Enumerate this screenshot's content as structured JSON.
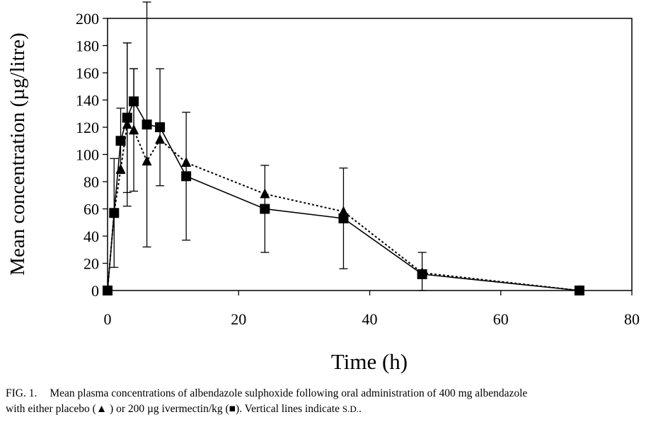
{
  "chart_data": {
    "type": "line",
    "title": "",
    "xlabel": "Time (h)",
    "ylabel": "Mean concentration (µg/litre)",
    "xlim": [
      0,
      80
    ],
    "ylim": [
      0,
      200
    ],
    "x_ticks": [
      0,
      20,
      40,
      60,
      80
    ],
    "y_ticks": [
      0,
      20,
      40,
      60,
      80,
      100,
      120,
      140,
      160,
      180,
      200
    ],
    "grid": false,
    "legend": "none",
    "series": [
      {
        "marker": "triangle",
        "line_style": "dotted",
        "color": "#000000",
        "x": [
          0,
          1,
          2,
          3,
          4,
          6,
          8,
          12,
          24,
          36,
          48,
          72
        ],
        "y": [
          0,
          57,
          89,
          122,
          118,
          95,
          111,
          94,
          71,
          58,
          13,
          0
        ],
        "sd": [
          0,
          0,
          0,
          60,
          45,
          0,
          0,
          0,
          0,
          0,
          0,
          0
        ]
      },
      {
        "marker": "square",
        "line_style": "solid",
        "color": "#000000",
        "x": [
          0,
          1,
          2,
          3,
          4,
          6,
          8,
          12,
          24,
          36,
          48,
          72
        ],
        "y": [
          0,
          57,
          110,
          127,
          139,
          122,
          120,
          84,
          60,
          53,
          12,
          0
        ],
        "sd": [
          0,
          40,
          24,
          55,
          24,
          90,
          43,
          47,
          32,
          37,
          16,
          0
        ]
      }
    ]
  },
  "caption": {
    "label": "FIG. 1.",
    "line1": "Mean plasma concentrations of albendazole sulphoxide following oral administration of 400 mg albendazole",
    "line2_a": "with either placebo (",
    "triangle_symbol": "▲",
    "line2_b": " ) or 200 µg ivermectin/kg (",
    "square_symbol": "■",
    "line2_c": "). Vertical lines indicate ",
    "sd_text": "S.D.",
    "line2_d": "."
  }
}
